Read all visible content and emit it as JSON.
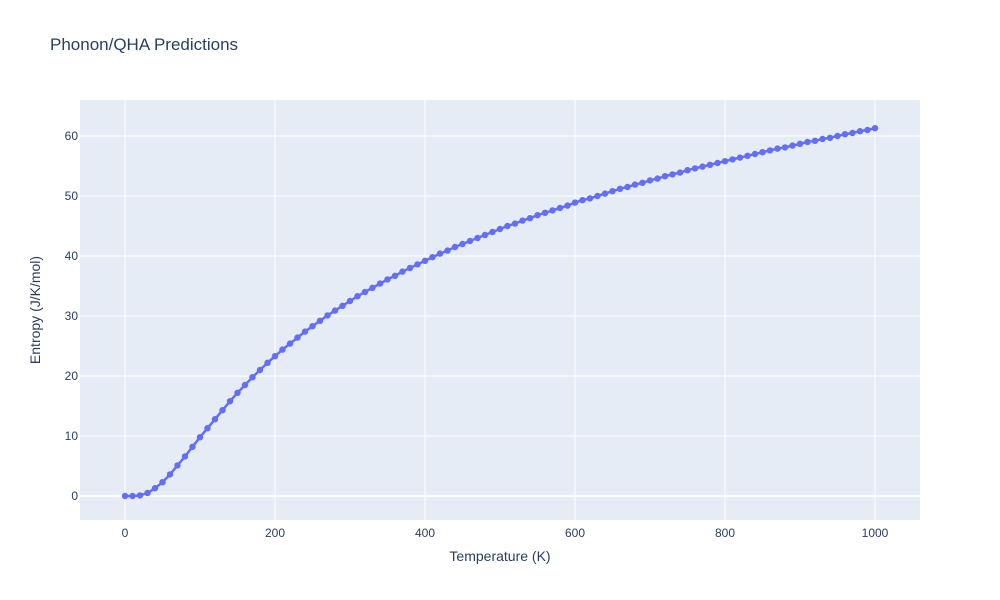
{
  "chart_data": {
    "type": "line",
    "title": "Phonon/QHA Predictions",
    "xlabel": "Temperature (K)",
    "ylabel": "Entropy (J/K/mol)",
    "xlim": [
      -60,
      1060
    ],
    "ylim": [
      -4,
      66
    ],
    "xticks": [
      0,
      200,
      400,
      600,
      800,
      1000
    ],
    "yticks": [
      0,
      10,
      20,
      30,
      40,
      50,
      60
    ],
    "grid": true,
    "marker": "circle",
    "colors": {
      "series": "#636efa",
      "plot_bg": "#e5ecf6",
      "grid": "#ffffff",
      "text": "#2a3f5f"
    },
    "series": [
      {
        "x": [
          0,
          10,
          20,
          30,
          40,
          50,
          60,
          70,
          80,
          90,
          100,
          110,
          120,
          130,
          140,
          150,
          160,
          170,
          180,
          190,
          200,
          210,
          220,
          230,
          240,
          250,
          260,
          270,
          280,
          290,
          300,
          310,
          320,
          330,
          340,
          350,
          360,
          370,
          380,
          390,
          400,
          410,
          420,
          430,
          440,
          450,
          460,
          470,
          480,
          490,
          500,
          510,
          520,
          530,
          540,
          550,
          560,
          570,
          580,
          590,
          600,
          610,
          620,
          630,
          640,
          650,
          660,
          670,
          680,
          690,
          700,
          710,
          720,
          730,
          740,
          750,
          760,
          770,
          780,
          790,
          800,
          810,
          820,
          830,
          840,
          850,
          860,
          870,
          880,
          890,
          900,
          910,
          920,
          930,
          940,
          950,
          960,
          970,
          980,
          990,
          1000
        ],
        "y": [
          0,
          0,
          0.1,
          0.5,
          1.3,
          2.3,
          3.6,
          5.1,
          6.6,
          8.2,
          9.8,
          11.3,
          12.8,
          14.3,
          15.8,
          17.2,
          18.5,
          19.8,
          21.0,
          22.2,
          23.3,
          24.4,
          25.4,
          26.4,
          27.4,
          28.3,
          29.2,
          30.1,
          30.9,
          31.7,
          32.5,
          33.3,
          34.0,
          34.7,
          35.4,
          36.1,
          36.7,
          37.4,
          38.0,
          38.6,
          39.2,
          39.8,
          40.4,
          40.9,
          41.5,
          42.0,
          42.5,
          43.0,
          43.5,
          44.0,
          44.5,
          45.0,
          45.4,
          45.9,
          46.3,
          46.8,
          47.2,
          47.6,
          48.0,
          48.4,
          48.9,
          49.3,
          49.6,
          50.0,
          50.4,
          50.8,
          51.2,
          51.5,
          51.9,
          52.2,
          52.6,
          52.9,
          53.3,
          53.6,
          53.9,
          54.3,
          54.6,
          54.9,
          55.2,
          55.5,
          55.8,
          56.1,
          56.4,
          56.7,
          57.0,
          57.3,
          57.6,
          57.9,
          58.1,
          58.4,
          58.7,
          59.0,
          59.2,
          59.5,
          59.7,
          60.0,
          60.3,
          60.5,
          60.8,
          61.0,
          61.3
        ]
      }
    ]
  }
}
